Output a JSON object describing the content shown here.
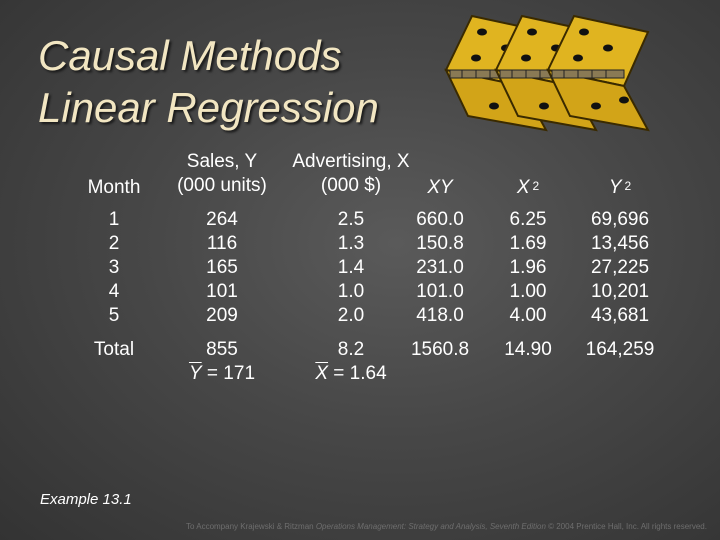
{
  "title": {
    "line1": "Causal Methods",
    "line2": "Linear Regression"
  },
  "headers": {
    "month": "Month",
    "sales_line1": "Sales, Y",
    "sales_line2": "(000 units)",
    "adv_line1": "Advertising, X",
    "adv_line2": "(000 $)",
    "xy": "XY",
    "x2_base": "X",
    "x2_exp": "2",
    "y2_base": "Y",
    "y2_exp": "2"
  },
  "rows": [
    {
      "month": "1",
      "sales": "264",
      "adv": "2.5",
      "xy": "660.0",
      "x2": "6.25",
      "y2": "69,696"
    },
    {
      "month": "2",
      "sales": "116",
      "adv": "1.3",
      "xy": "150.8",
      "x2": "1.69",
      "y2": "13,456"
    },
    {
      "month": "3",
      "sales": "165",
      "adv": "1.4",
      "xy": "231.0",
      "x2": "1.96",
      "y2": "27,225"
    },
    {
      "month": "4",
      "sales": "101",
      "adv": "1.0",
      "xy": "101.0",
      "x2": "1.00",
      "y2": "10,201"
    },
    {
      "month": "5",
      "sales": "209",
      "adv": "2.0",
      "xy": "418.0",
      "x2": "4.00",
      "y2": "43,681"
    }
  ],
  "total": {
    "label": "Total",
    "sales": "855",
    "adv": "8.2",
    "xy": "1560.8",
    "x2": "14.90",
    "y2": "164,259",
    "mean_y_symbol": "Y",
    "mean_y_value": " = 171",
    "mean_x_symbol": "X",
    "mean_x_value": " = 1.64"
  },
  "example_label": "Example 13.1",
  "copyright": {
    "prefix": "To Accompany Krajewski & Ritzman ",
    "book": "Operations Management: Strategy and Analysis, Seventh Edition",
    "suffix": " © 2004 Prentice Hall, Inc. All rights reserved."
  },
  "colors": {
    "title": "#f2e6c2",
    "background": "#474747",
    "text": "#ffffff",
    "domino": "#e0b420"
  },
  "icons": {
    "decoration": "hinged-dominoes-icon"
  }
}
